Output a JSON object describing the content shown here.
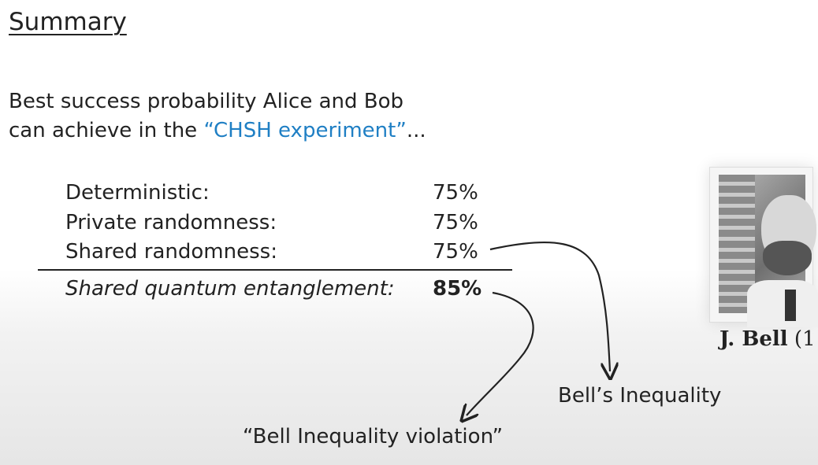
{
  "title": "Summary",
  "intro": {
    "line1": "Best success probability Alice and Bob",
    "line2_prefix": "can achieve in the ",
    "line2_highlight": "“CHSH experiment”",
    "line2_suffix": "..."
  },
  "rows": [
    {
      "label": "Deterministic:",
      "value": "75%"
    },
    {
      "label": "Private randomness:",
      "value": "75%"
    },
    {
      "label": "Shared randomness:",
      "value": "75%"
    },
    {
      "label": "Shared quantum entanglement:",
      "value": "85%"
    }
  ],
  "annotations": {
    "bell_inequality": "Bell’s Inequality",
    "bell_violation": "“Bell Inequality violation”"
  },
  "photo": {
    "caption_bold": "J. Bell",
    "caption_rest": " (1"
  },
  "colors": {
    "highlight": "#1f7fc4",
    "text": "#222222"
  }
}
